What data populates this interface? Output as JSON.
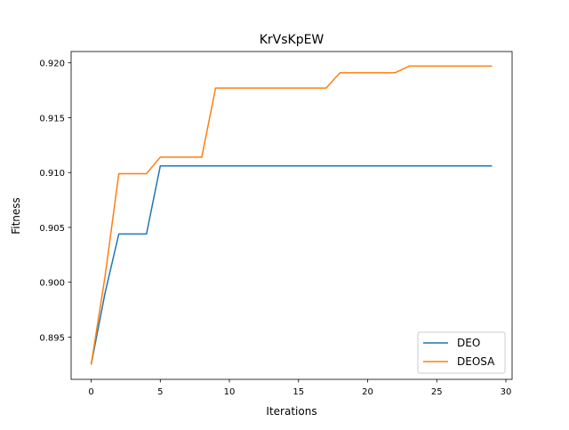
{
  "chart_data": {
    "type": "line",
    "title": "KrVsKpEW",
    "xlabel": "Iterations",
    "ylabel": "Fitness",
    "xlim": [
      -1.45,
      30.45
    ],
    "ylim": [
      0.89115,
      0.92103
    ],
    "xticks": [
      0,
      5,
      10,
      15,
      20,
      25,
      30
    ],
    "xtick_labels": [
      "0",
      "5",
      "10",
      "15",
      "20",
      "25",
      "30"
    ],
    "yticks": [
      0.895,
      0.9,
      0.905,
      0.91,
      0.915,
      0.92
    ],
    "ytick_labels": [
      "0.895",
      "0.900",
      "0.905",
      "0.910",
      "0.915",
      "0.920"
    ],
    "grid": false,
    "legend_position": "lower-right",
    "x": [
      0,
      1,
      2,
      3,
      4,
      5,
      6,
      7,
      8,
      9,
      10,
      11,
      12,
      13,
      14,
      15,
      16,
      17,
      18,
      19,
      20,
      21,
      22,
      23,
      24,
      25,
      26,
      27,
      28,
      29
    ],
    "series": [
      {
        "name": "DEO",
        "color": "#1f77b4",
        "values": [
          0.8925,
          0.899,
          0.9044,
          0.9044,
          0.9044,
          0.9106,
          0.9106,
          0.9106,
          0.9106,
          0.9106,
          0.9106,
          0.9106,
          0.9106,
          0.9106,
          0.9106,
          0.9106,
          0.9106,
          0.9106,
          0.9106,
          0.9106,
          0.9106,
          0.9106,
          0.9106,
          0.9106,
          0.9106,
          0.9106,
          0.9106,
          0.9106,
          0.9106,
          0.9106
        ]
      },
      {
        "name": "DEOSA",
        "color": "#ff7f0e",
        "values": [
          0.8925,
          0.9005,
          0.9099,
          0.9099,
          0.9099,
          0.9114,
          0.9114,
          0.9114,
          0.9114,
          0.9177,
          0.9177,
          0.9177,
          0.9177,
          0.9177,
          0.9177,
          0.9177,
          0.9177,
          0.9177,
          0.9191,
          0.9191,
          0.9191,
          0.9191,
          0.9191,
          0.9197,
          0.9197,
          0.9197,
          0.9197,
          0.9197,
          0.9197,
          0.9197
        ]
      }
    ]
  }
}
